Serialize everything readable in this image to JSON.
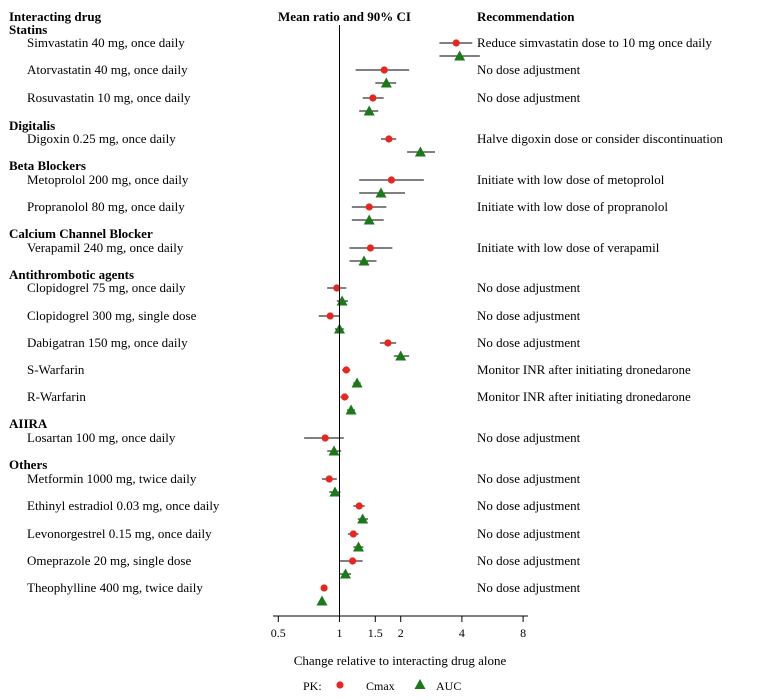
{
  "chart_data": {
    "type": "forest",
    "headers": {
      "drug": "Interacting drug",
      "ci": "Mean ratio and 90% CI",
      "rec": "Recommendation"
    },
    "xlabel": "Change relative to interacting drug alone",
    "x_scale": "log2",
    "xlim": [
      0.5,
      8
    ],
    "ticks": [
      {
        "value": 0.5,
        "label": "0.5"
      },
      {
        "value": 1,
        "label": "1"
      },
      {
        "value": 1.5,
        "label": "1.5"
      },
      {
        "value": 2,
        "label": "2"
      },
      {
        "value": 4,
        "label": "4"
      },
      {
        "value": 8,
        "label": "8"
      }
    ],
    "reference_line": 1,
    "legend": {
      "prefix": "PK:",
      "cmax": "Cmax",
      "auc": "AUC"
    },
    "colors": {
      "cmax": "#e8251f",
      "auc": "#1a7a1a"
    },
    "groups": [
      {
        "name": "Statins",
        "rows": [
          {
            "label": "Simvastatin 40 mg, once daily",
            "rec": "Reduce simvastatin dose to 10 mg once daily",
            "cmax": {
              "est": 3.75,
              "lo": 3.1,
              "hi": 4.5
            },
            "auc": {
              "est": 3.9,
              "lo": 3.1,
              "hi": 4.9
            }
          },
          {
            "label": "Atorvastatin 40 mg, once daily",
            "rec": "No dose adjustment",
            "cmax": {
              "est": 1.66,
              "lo": 1.2,
              "hi": 2.2
            },
            "auc": {
              "est": 1.7,
              "lo": 1.5,
              "hi": 1.9
            }
          },
          {
            "label": "Rosuvastatin 10 mg, once daily",
            "rec": "No dose adjustment",
            "cmax": {
              "est": 1.46,
              "lo": 1.3,
              "hi": 1.65
            },
            "auc": {
              "est": 1.4,
              "lo": 1.25,
              "hi": 1.55
            }
          }
        ]
      },
      {
        "name": "Digitalis",
        "rows": [
          {
            "label": "Digoxin 0.25 mg, once daily",
            "rec": "Halve digoxin dose or consider discontinuation",
            "cmax": {
              "est": 1.75,
              "lo": 1.6,
              "hi": 1.9
            },
            "auc": {
              "est": 2.5,
              "lo": 2.15,
              "hi": 2.95
            }
          }
        ]
      },
      {
        "name": "Beta Blockers",
        "rows": [
          {
            "label": "Metoprolol 200 mg, once daily",
            "rec": "Initiate with low dose of metoprolol",
            "cmax": {
              "est": 1.8,
              "lo": 1.25,
              "hi": 2.6
            },
            "auc": {
              "est": 1.6,
              "lo": 1.25,
              "hi": 2.1
            }
          },
          {
            "label": "Propranolol 80 mg, once daily",
            "rec": "Initiate with low dose of propranolol",
            "cmax": {
              "est": 1.4,
              "lo": 1.15,
              "hi": 1.7
            },
            "auc": {
              "est": 1.4,
              "lo": 1.15,
              "hi": 1.65
            }
          }
        ]
      },
      {
        "name": "Calcium Channel Blocker",
        "rows": [
          {
            "label": "Verapamil 240 mg, once daily",
            "rec": "Initiate with low dose of verapamil",
            "cmax": {
              "est": 1.42,
              "lo": 1.12,
              "hi": 1.82
            },
            "auc": {
              "est": 1.32,
              "lo": 1.12,
              "hi": 1.52
            }
          }
        ]
      },
      {
        "name": "Antithrombotic agents",
        "rows": [
          {
            "label": "Clopidogrel 75 mg, once daily",
            "rec": "No dose adjustment",
            "cmax": {
              "est": 0.97,
              "lo": 0.87,
              "hi": 1.08
            },
            "auc": {
              "est": 1.03,
              "lo": 0.97,
              "hi": 1.1
            }
          },
          {
            "label": "Clopidogrel 300 mg, single dose",
            "rec": "No dose adjustment",
            "cmax": {
              "est": 0.9,
              "lo": 0.79,
              "hi": 1.0
            },
            "auc": {
              "est": 1.0,
              "lo": 0.95,
              "hi": 1.05
            }
          },
          {
            "label": "Dabigatran 150 mg, once daily",
            "rec": "No dose adjustment",
            "cmax": {
              "est": 1.73,
              "lo": 1.58,
              "hi": 1.9
            },
            "auc": {
              "est": 2.0,
              "lo": 1.85,
              "hi": 2.2
            }
          },
          {
            "label": "S-Warfarin",
            "rec": "Monitor INR after initiating dronedarone",
            "cmax": {
              "est": 1.08,
              "lo": 1.03,
              "hi": 1.13
            },
            "auc": {
              "est": 1.22,
              "lo": 1.17,
              "hi": 1.27
            }
          },
          {
            "label": "R-Warfarin",
            "rec": "Monitor INR after initiating dronedarone",
            "cmax": {
              "est": 1.06,
              "lo": 1.01,
              "hi": 1.11
            },
            "auc": {
              "est": 1.14,
              "lo": 1.09,
              "hi": 1.19
            }
          }
        ]
      },
      {
        "name": "AIIRA",
        "rows": [
          {
            "label": "Losartan 100 mg, once daily",
            "rec": "No dose adjustment",
            "cmax": {
              "est": 0.85,
              "lo": 0.67,
              "hi": 1.05
            },
            "auc": {
              "est": 0.94,
              "lo": 0.87,
              "hi": 1.02
            }
          }
        ]
      },
      {
        "name": "Others",
        "rows": [
          {
            "label": "Metformin 1000 mg, twice daily",
            "rec": "No dose adjustment",
            "cmax": {
              "est": 0.89,
              "lo": 0.82,
              "hi": 0.97
            },
            "auc": {
              "est": 0.95,
              "lo": 0.89,
              "hi": 1.01
            }
          },
          {
            "label": "Ethinyl estradiol 0.03 mg, once daily",
            "rec": "No dose adjustment",
            "cmax": {
              "est": 1.25,
              "lo": 1.17,
              "hi": 1.33
            },
            "auc": {
              "est": 1.3,
              "lo": 1.23,
              "hi": 1.38
            }
          },
          {
            "label": "Levonorgestrel 0.15 mg, once daily",
            "rec": "No dose adjustment",
            "cmax": {
              "est": 1.17,
              "lo": 1.1,
              "hi": 1.24
            },
            "auc": {
              "est": 1.24,
              "lo": 1.17,
              "hi": 1.31
            }
          },
          {
            "label": "Omeprazole 20 mg, single dose",
            "rec": "No dose adjustment",
            "cmax": {
              "est": 1.16,
              "lo": 1.0,
              "hi": 1.3
            },
            "auc": {
              "est": 1.07,
              "lo": 1.0,
              "hi": 1.14
            }
          },
          {
            "label": "Theophylline 400 mg, twice daily",
            "rec": "No dose adjustment",
            "cmax": {
              "est": 0.84,
              "lo": 0.82,
              "hi": 0.86
            },
            "auc": {
              "est": 0.82,
              "lo": 0.8,
              "hi": 0.84
            }
          }
        ]
      }
    ]
  }
}
